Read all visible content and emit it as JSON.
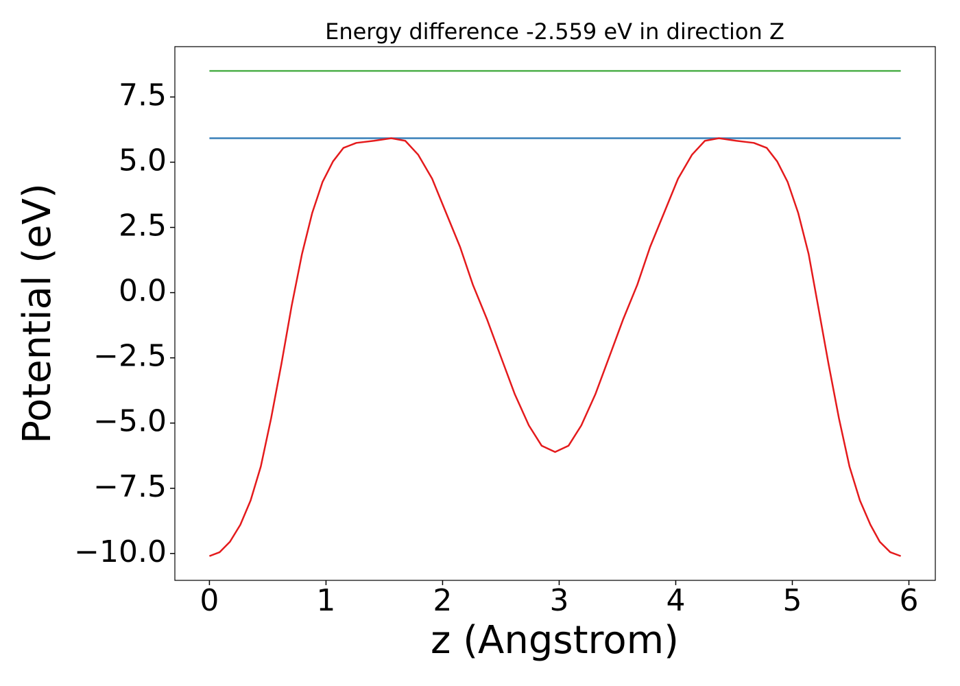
{
  "chart_data": {
    "type": "line",
    "title": "Energy difference -2.559 eV in direction Z",
    "x_label": "z (Angstrom)",
    "y_label": "Potential (eV)",
    "xlim": [
      -0.2965,
      6.2265
    ],
    "ylim": [
      -11.03,
      9.43
    ],
    "xticks": [
      0,
      1,
      2,
      3,
      4,
      5,
      6
    ],
    "yticks": [
      {
        "value": -10,
        "label": "−10.0"
      },
      {
        "value": -7.5,
        "label": "−7.5"
      },
      {
        "value": -5,
        "label": "−5.0"
      },
      {
        "value": -2.5,
        "label": "−2.5"
      },
      {
        "value": 0,
        "label": "0.0"
      },
      2.5,
      {
        "value": 5,
        "label": "5.0"
      },
      7.5
    ],
    "grid": false,
    "series": [
      {
        "color": "#4daf4a",
        "x": [
          0,
          5.93
        ],
        "values": [
          8.5,
          8.5
        ]
      },
      {
        "color": "#377eb8",
        "x": [
          0,
          5.93
        ],
        "values": [
          5.92,
          5.92
        ]
      },
      {
        "color": "#e41a1c",
        "x": [
          0,
          0.088,
          0.176,
          0.265,
          0.353,
          0.441,
          0.529,
          0.618,
          0.706,
          0.794,
          0.882,
          0.97,
          1.06,
          1.15,
          1.26,
          1.41,
          1.56,
          1.68,
          1.79,
          1.91,
          2.03,
          2.15,
          2.26,
          2.38,
          2.5,
          2.62,
          2.74,
          2.85,
          2.965,
          3.08,
          3.19,
          3.31,
          3.43,
          3.55,
          3.67,
          3.78,
          3.9,
          4.02,
          4.14,
          4.25,
          4.37,
          4.52,
          4.67,
          4.78,
          4.87,
          4.96,
          5.05,
          5.14,
          5.22,
          5.31,
          5.4,
          5.49,
          5.58,
          5.67,
          5.75,
          5.84,
          5.93
        ],
        "values": [
          -10.1,
          -9.95,
          -9.55,
          -8.9,
          -7.97,
          -6.66,
          -4.82,
          -2.72,
          -0.49,
          1.48,
          3.06,
          4.24,
          5.03,
          5.55,
          5.74,
          5.82,
          5.92,
          5.82,
          5.29,
          4.37,
          3.06,
          1.75,
          0.3,
          -1.01,
          -2.46,
          -3.9,
          -5.09,
          -5.87,
          -6.11,
          -5.87,
          -5.09,
          -3.9,
          -2.46,
          -1.01,
          0.3,
          1.75,
          3.06,
          4.37,
          5.29,
          5.82,
          5.92,
          5.82,
          5.74,
          5.55,
          5.03,
          4.24,
          3.06,
          1.48,
          -0.49,
          -2.72,
          -4.82,
          -6.66,
          -7.97,
          -8.9,
          -9.55,
          -9.95,
          -10.1
        ]
      }
    ]
  }
}
